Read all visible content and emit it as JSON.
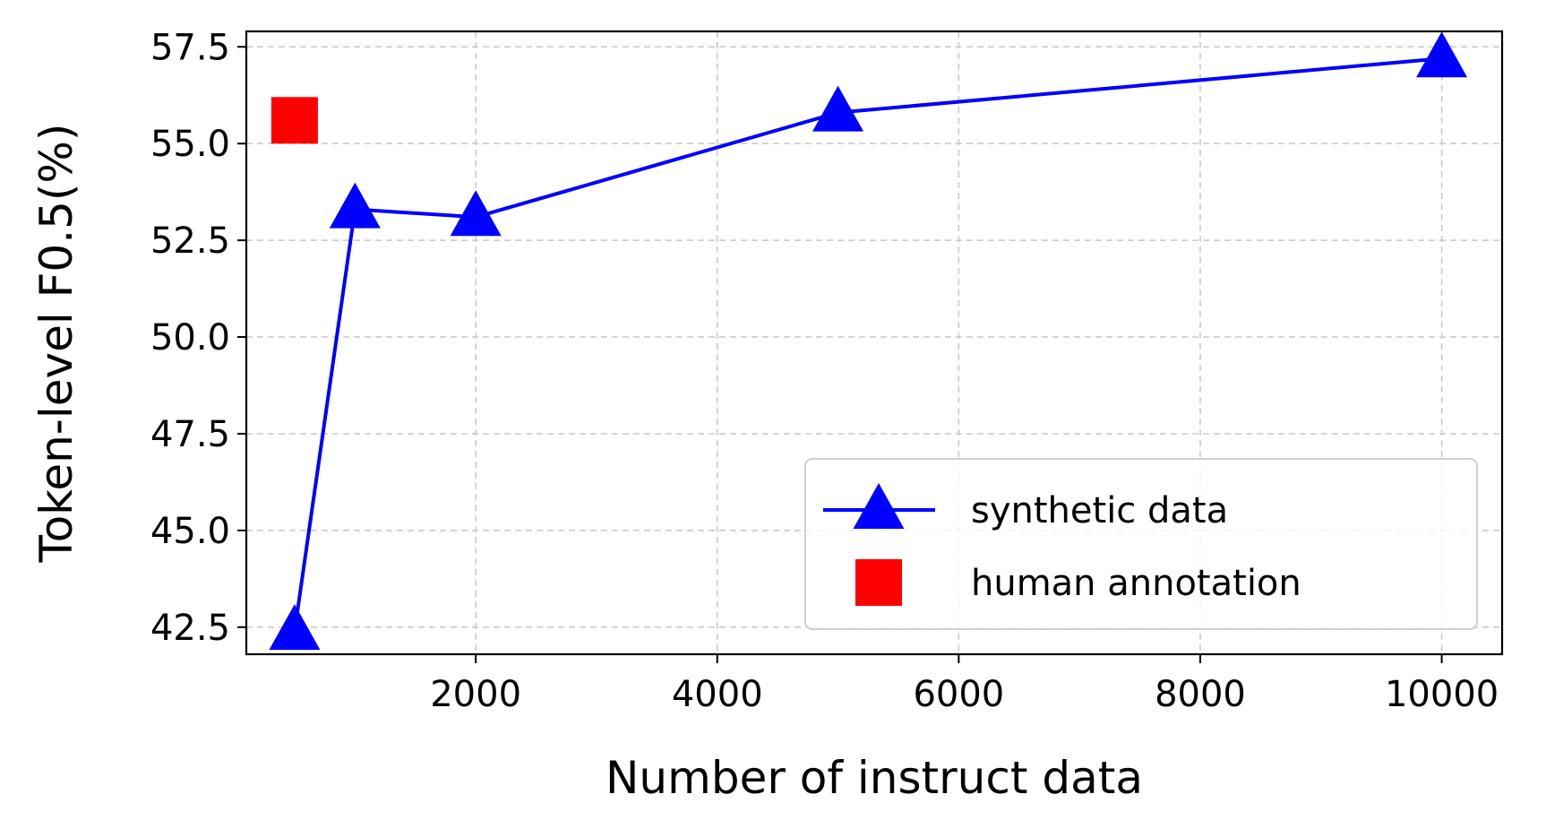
{
  "chart_data": {
    "type": "line",
    "title": "",
    "xlabel": "Number of instruct data",
    "ylabel": "Token-level F0.5(%)",
    "xlim": [
      100,
      10500
    ],
    "ylim": [
      41.8,
      57.9
    ],
    "xticks": [
      2000,
      4000,
      6000,
      8000,
      10000
    ],
    "yticks": [
      42.5,
      45.0,
      47.5,
      50.0,
      52.5,
      55.0,
      57.5
    ],
    "grid": true,
    "legend_position": "lower-right",
    "series": [
      {
        "name": "synthetic data",
        "color": "#0000ff",
        "marker": "triangle",
        "line": true,
        "x": [
          500,
          1000,
          2000,
          5000,
          10000
        ],
        "y": [
          42.4,
          53.3,
          53.1,
          55.8,
          57.2
        ]
      },
      {
        "name": "human annotation",
        "color": "#ff0000",
        "marker": "square",
        "line": false,
        "x": [
          500
        ],
        "y": [
          55.6
        ]
      }
    ]
  }
}
